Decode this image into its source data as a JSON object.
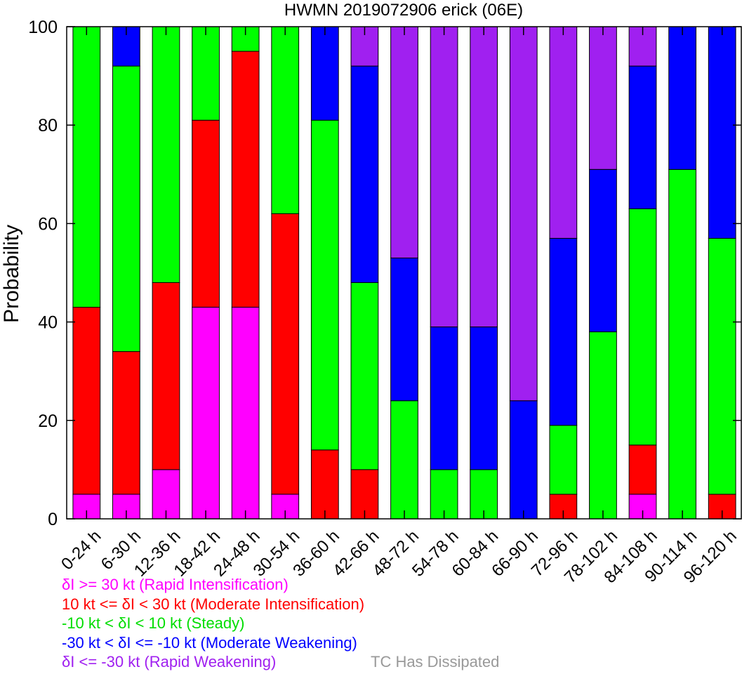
{
  "chart_data": {
    "type": "bar",
    "stacked": true,
    "title": "HWMN 2019072906 erick (06E)",
    "xlabel": "",
    "ylabel": "Probability",
    "ylim": [
      0,
      100
    ],
    "yticks": [
      0,
      20,
      40,
      60,
      80,
      100
    ],
    "grid": false,
    "legend_placement": "bottom",
    "categories": [
      "0-24 h",
      "6-30 h",
      "12-36 h",
      "18-42 h",
      "24-48 h",
      "30-54 h",
      "36-60 h",
      "42-66 h",
      "48-72 h",
      "54-78 h",
      "60-84 h",
      "66-90 h",
      "72-96 h",
      "78-102 h",
      "84-108 h",
      "90-114 h",
      "96-120 h"
    ],
    "series": [
      {
        "name": "δI >= 30 kt (Rapid Intensification)",
        "color": "#ff00ff",
        "values": [
          5,
          5,
          10,
          43,
          43,
          5,
          0,
          0,
          0,
          0,
          0,
          0,
          0,
          0,
          5,
          0,
          0
        ]
      },
      {
        "name": "10 kt <= δI < 30 kt (Moderate Intensification)",
        "color": "#ff0000",
        "values": [
          38,
          29,
          38,
          38,
          52,
          57,
          14,
          10,
          0,
          0,
          0,
          0,
          5,
          0,
          10,
          0,
          5
        ]
      },
      {
        "name": "-10 kt < δI < 10 kt (Steady)",
        "color": "#00ff00",
        "values": [
          57,
          58,
          52,
          19,
          5,
          38,
          67,
          38,
          24,
          10,
          10,
          0,
          14,
          38,
          48,
          71,
          52
        ]
      },
      {
        "name": "-30 kt < δI <= -10 kt (Moderate Weakening)",
        "color": "#0000ff",
        "values": [
          0,
          8,
          0,
          0,
          0,
          0,
          19,
          44,
          29,
          29,
          29,
          24,
          38,
          33,
          29,
          29,
          43
        ]
      },
      {
        "name": "δI <= -30 kt (Rapid Weakening)",
        "color": "#a020f0",
        "values": [
          0,
          0,
          0,
          0,
          0,
          0,
          0,
          8,
          47,
          61,
          61,
          76,
          43,
          29,
          8,
          0,
          0
        ]
      }
    ],
    "dissipated_label": "TC Has Dissipated",
    "dissipated_color": "#999999"
  }
}
